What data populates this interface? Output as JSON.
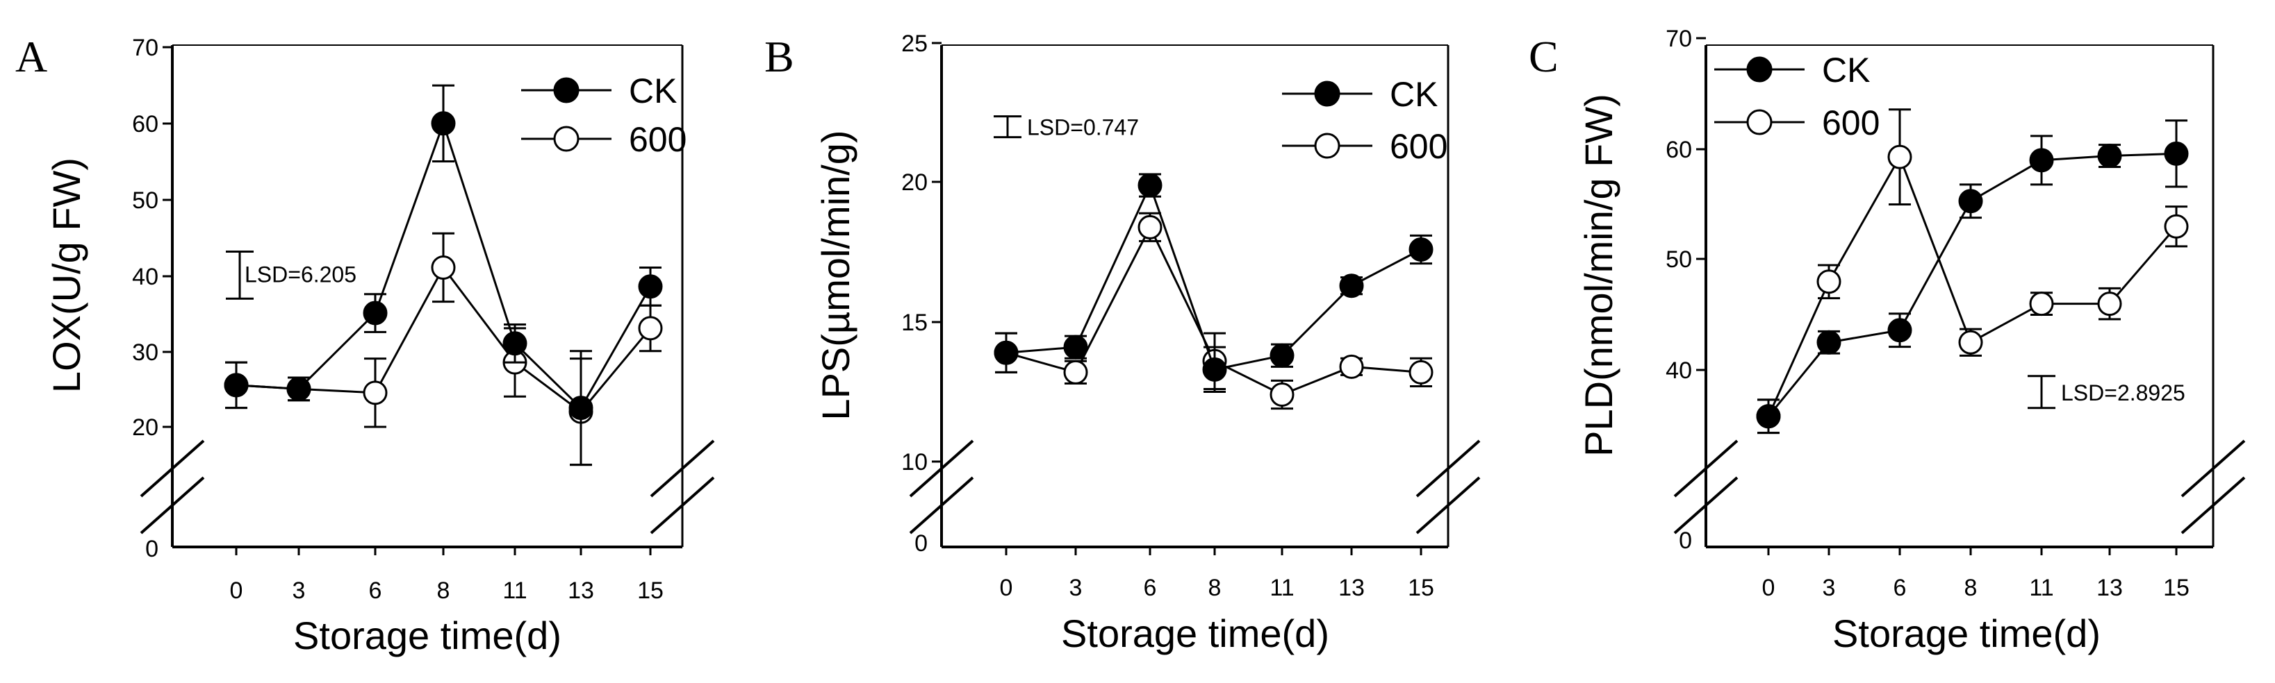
{
  "chart_data": [
    {
      "type": "line",
      "panel": "A",
      "xlabel": "Storage time(d)",
      "ylabel": "LOX(U/g FW)",
      "categories": [
        "0",
        "3",
        "6",
        "8",
        "11",
        "13",
        "15"
      ],
      "yticks": [
        "0",
        "20",
        "30",
        "40",
        "50",
        "60",
        "70"
      ],
      "ylim": [
        20,
        70
      ],
      "axis_break": true,
      "legend_position": "top-right",
      "lsd": {
        "label": "LSD=6.205",
        "value": 6.205,
        "center": 40
      },
      "series": [
        {
          "name": "CK",
          "marker": "filled",
          "values": [
            25.5,
            25.0,
            35.0,
            60.0,
            31.0,
            22.5,
            38.5
          ],
          "errors": [
            3.0,
            1.5,
            2.5,
            5.0,
            2.5,
            7.5,
            2.5
          ]
        },
        {
          "name": "600",
          "marker": "open",
          "values": [
            25.5,
            25.0,
            24.5,
            41.0,
            28.5,
            22.0,
            33.0
          ],
          "errors": [
            3.0,
            1.5,
            4.5,
            4.5,
            4.5,
            7.0,
            3.0
          ]
        }
      ]
    },
    {
      "type": "line",
      "panel": "B",
      "xlabel": "Storage time(d)",
      "ylabel": "LPS(µmol/min/g)",
      "categories": [
        "0",
        "3",
        "6",
        "8",
        "11",
        "13",
        "15"
      ],
      "yticks": [
        "0",
        "10",
        "15",
        "20",
        "25"
      ],
      "ylim": [
        10,
        25
      ],
      "axis_break": true,
      "legend_position": "top-right",
      "lsd": {
        "label": "LSD=0.747",
        "value": 0.747,
        "center": 22
      },
      "series": [
        {
          "name": "CK",
          "marker": "filled",
          "values": [
            13.9,
            14.1,
            19.9,
            13.3,
            13.8,
            16.3,
            17.6
          ],
          "errors": [
            0.7,
            0.4,
            0.4,
            0.8,
            0.4,
            0.3,
            0.5
          ]
        },
        {
          "name": "600",
          "marker": "open",
          "values": [
            13.9,
            13.2,
            18.4,
            13.6,
            12.4,
            13.4,
            13.2
          ],
          "errors": [
            0.7,
            0.4,
            0.5,
            1.0,
            0.5,
            0.3,
            0.5
          ]
        }
      ]
    },
    {
      "type": "line",
      "panel": "C",
      "xlabel": "Storage time(d)",
      "ylabel": "PLD(nmol/min/g FW)",
      "categories": [
        "0",
        "3",
        "6",
        "8",
        "11",
        "13",
        "15"
      ],
      "yticks": [
        "0",
        "40",
        "50",
        "60",
        "70"
      ],
      "ylim": [
        35,
        70
      ],
      "axis_break": true,
      "legend_position": "top-left",
      "lsd": {
        "label": "LSD=2.8925",
        "value": 2.8925,
        "center": 38
      },
      "series": [
        {
          "name": "CK",
          "marker": "filled",
          "values": [
            35.8,
            42.5,
            43.6,
            55.3,
            59.0,
            59.4,
            59.6
          ],
          "errors": [
            1.5,
            1.0,
            1.5,
            1.5,
            2.2,
            1.0,
            3.0
          ]
        },
        {
          "name": "600",
          "marker": "open",
          "values": [
            35.8,
            48.0,
            59.3,
            42.5,
            46.0,
            46.0,
            53.0
          ],
          "errors": [
            1.5,
            1.5,
            4.3,
            1.2,
            1.0,
            1.4,
            1.8
          ]
        }
      ]
    }
  ]
}
